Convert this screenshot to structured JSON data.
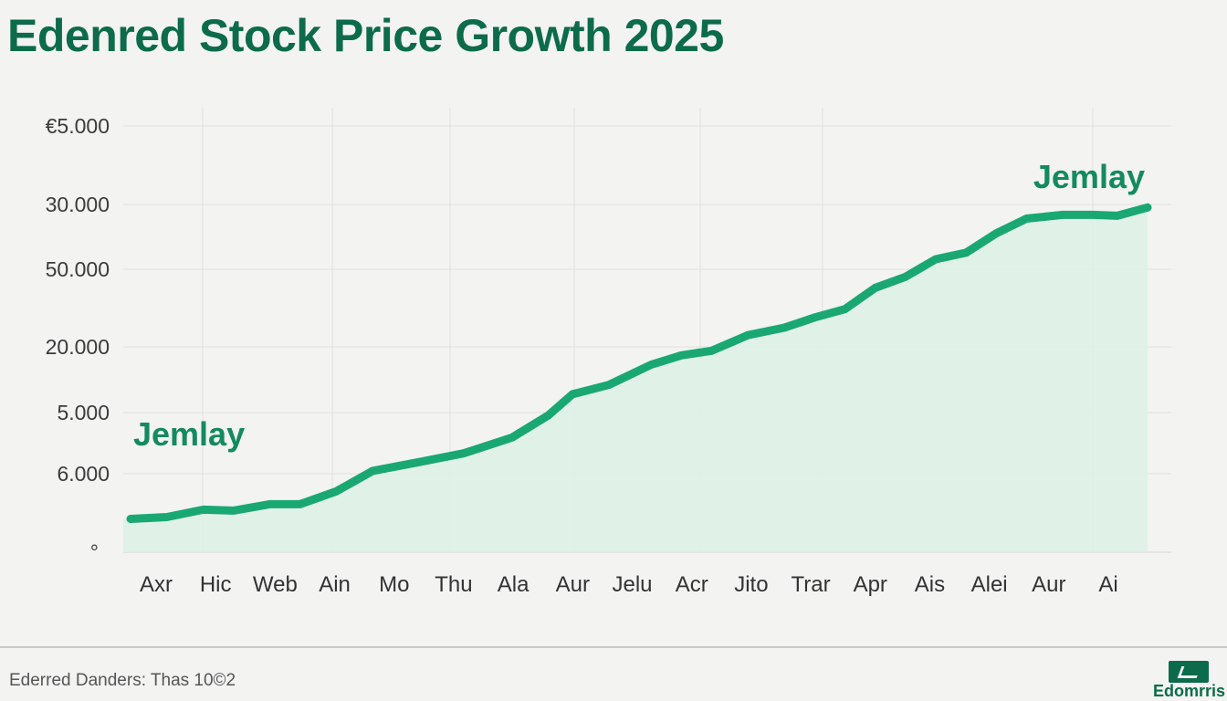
{
  "title": "Edenred Stock Price Growth 2025",
  "footer": {
    "source": "Ederred Danders: Thas 10©2",
    "brand": "Edomrris"
  },
  "colors": {
    "line": "#1aa872",
    "fill": "#dcf0e6",
    "title": "#0c6b4a",
    "annotation": "#138a60",
    "grid": "#e0e0e0"
  },
  "icons": {
    "brand_logo": "chart-logo-icon"
  },
  "chart_data": {
    "type": "area",
    "title": "Edenred Stock Price Growth 2025",
    "xlabel": "",
    "ylabel": "",
    "y_tick_labels": [
      "€5.000",
      "30.000",
      "50.000",
      "20.000",
      "5.000",
      "6.000",
      "°"
    ],
    "x_tick_labels": [
      "Axr",
      "Hic",
      "Web",
      "Ain",
      "Mo",
      "Thu",
      "Ala",
      "Aur",
      "Jelu",
      "Acr",
      "Jito",
      "Trar",
      "Apr",
      "Ais",
      "Alei",
      "Aur",
      "Ai"
    ],
    "grid": true,
    "legend": "none",
    "annotations": [
      {
        "text": "Jemlay",
        "near": "start"
      },
      {
        "text": "Jemlay",
        "near": "end"
      }
    ],
    "series": [
      {
        "x": [
          0,
          0.6,
          1.2,
          1.7,
          2.3,
          2.8,
          3.4,
          4.0,
          4.8,
          5.5,
          6.3,
          6.9,
          7.3,
          7.9,
          8.6,
          9.1,
          9.6,
          10.2,
          10.8,
          11.3,
          11.8,
          12.3,
          12.8,
          13.3,
          13.8,
          14.3,
          14.8,
          15.4,
          15.9,
          16.3,
          16.8
        ],
        "values": [
          3600,
          3800,
          4600,
          4500,
          5200,
          5200,
          6600,
          8800,
          9800,
          10700,
          12400,
          14800,
          17100,
          18100,
          20300,
          21300,
          21800,
          23500,
          24300,
          25400,
          26300,
          28600,
          29800,
          31700,
          32400,
          34500,
          36100,
          36500,
          36500,
          36400,
          37300
        ]
      }
    ]
  }
}
